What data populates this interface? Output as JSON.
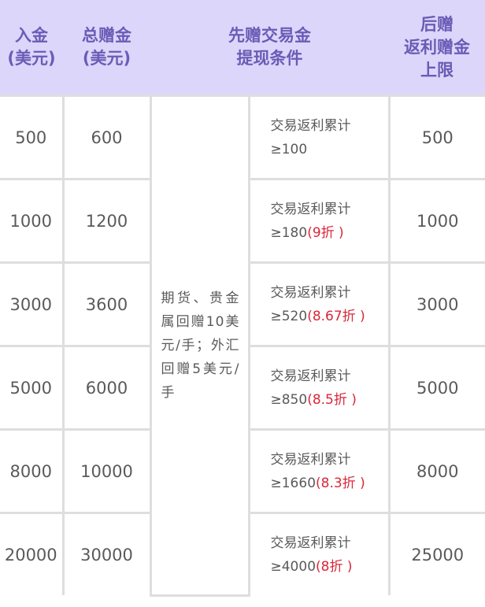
{
  "header": {
    "col1": [
      "入金",
      "(美元)"
    ],
    "col2": [
      "总赠金",
      "(美元)"
    ],
    "col3": [
      "先赠交易金",
      "提现条件"
    ],
    "col4": [
      "后赠",
      "返利赠金",
      "上限"
    ]
  },
  "shared_condition": "期货、贵金属回赠10美元/手；外汇回赠5美元/手",
  "rows": [
    {
      "deposit": "500",
      "total": "600",
      "cond_label": "交易返利累计",
      "cond_value": "≥100",
      "discount": "",
      "cap": "500"
    },
    {
      "deposit": "1000",
      "total": "1200",
      "cond_label": "交易返利累计",
      "cond_value": "≥180",
      "discount": "(9折 )",
      "cap": "1000"
    },
    {
      "deposit": "3000",
      "total": "3600",
      "cond_label": "交易返利累计",
      "cond_value": "≥520",
      "discount": "(8.67折 )",
      "cap": "3000"
    },
    {
      "deposit": "5000",
      "total": "6000",
      "cond_label": "交易返利累计",
      "cond_value": "≥850",
      "discount": "(8.5折 )",
      "cap": "5000"
    },
    {
      "deposit": "8000",
      "total": "10000",
      "cond_label": "交易返利累计",
      "cond_value": "≥1660",
      "discount": "(8.3折 )",
      "cap": "8000"
    },
    {
      "deposit": "20000",
      "total": "30000",
      "cond_label": "交易返利累计",
      "cond_value": "≥4000",
      "discount": "(8折 )",
      "cap": "25000"
    }
  ],
  "colors": {
    "header_bg": "#dcd6fb",
    "header_text": "#6a5cb5",
    "discount": "#d9263a",
    "border": "#dedede"
  }
}
